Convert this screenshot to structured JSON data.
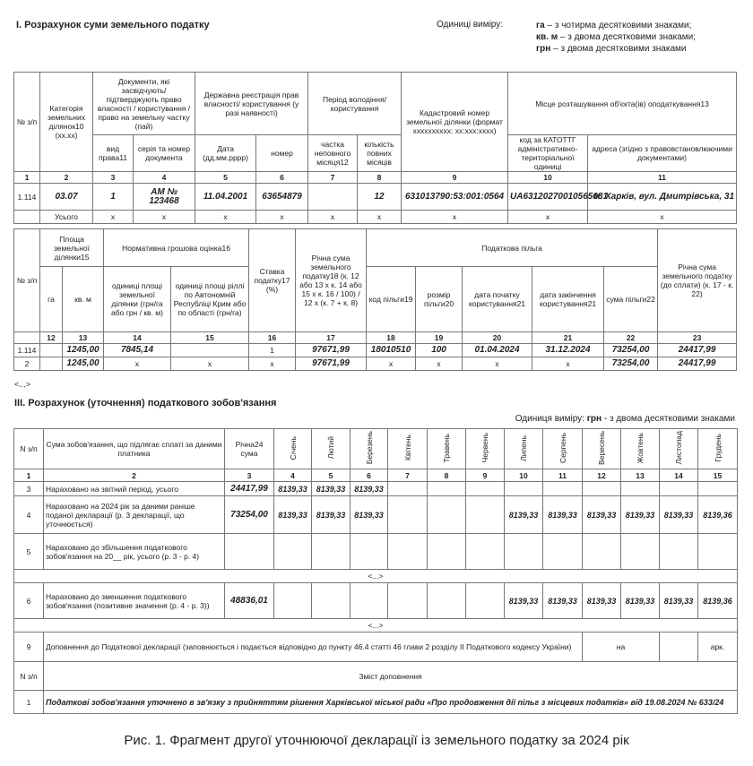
{
  "section1": {
    "title": "I. Розрахунок суми земельного податку",
    "units_label": "Одиниці виміру:",
    "units": [
      {
        "unit": "га",
        "text": "–  з чотирма десятковими знаками;"
      },
      {
        "unit": "кв. м",
        "text": "– з двома десятковими знаками;"
      },
      {
        "unit": "грн",
        "text": "–  з двома десятковими знаками"
      }
    ]
  },
  "t1": {
    "h": {
      "no": "№ з/п",
      "cat": "Категорія земельних ділянок10 (xx.xx)",
      "docs": "Документи, які засвідчують/ підтверджують право власності / користування / право на земельну частку (пай)",
      "reg": "Державна реєстрація прав власності/ користування (у разі наявності)",
      "period": "Період володіння/ користування",
      "cad": "Кадастровий номер земельної ділянки (формат xxxxxxxxxx: xx:xxx:xxxx)",
      "place": "Місце розташування об'єкта(ів) оподаткування13"
    },
    "sub": [
      "вид права11",
      "серія та номер документа",
      "Дата (дд.мм.рррр)",
      "номер",
      "частка неповного місяця12",
      "кількість повних місяців",
      "код за КАТОТТГ адміністративно-територіальної одиниці",
      "адреса (згідно з правовстановлюючими документами)"
    ],
    "nums": [
      "1",
      "2",
      "3",
      "4",
      "5",
      "6",
      "7",
      "8",
      "9",
      "10",
      "11"
    ],
    "row": [
      "1.114",
      "03.07",
      "1",
      "АМ № 123468",
      "11.04.2001",
      "63654879",
      "",
      "12",
      "631013790:53:001:0564",
      "UA63120270010565081",
      "м. Харків, вул. Дмитрівська, 31"
    ],
    "total": [
      "",
      "Усього",
      "x",
      "x",
      "x",
      "x",
      "x",
      "x",
      "x",
      "x",
      "x"
    ]
  },
  "t2": {
    "h": {
      "no": "№ з/п",
      "area": "Площа земельної ділянки15",
      "ngo": "Нормативна грошова оцінка16",
      "rate": "Ставка податку17 (%)",
      "annual": "Річна сума земельного податку18 (к. 12 або 13 х к. 14 або 15 х к. 16 / 100) / 12 х (к. 7 + к. 8)",
      "relief": "Податкова пільга",
      "topay": "Річна сума земельного податку (до сплати) (к. 17 - к. 22)"
    },
    "sub": [
      "га",
      "кв. м",
      "одиниці площі земельної ділянки (грн/га або грн / кв. м)",
      "одиниці площі ріллі по Автономній Республіці Крим або по області (грн/га)",
      "код пільги19",
      "розмір пільги20",
      "дата початку користування21",
      "дата закінчення користування21",
      "сума пільги22"
    ],
    "nums": [
      "",
      "12",
      "13",
      "14",
      "15",
      "16",
      "17",
      "18",
      "19",
      "20",
      "21",
      "22",
      "23"
    ],
    "rows": [
      [
        "1.114",
        "",
        "1245,00",
        "7845,14",
        "",
        "1",
        "97671,99",
        "18010510",
        "100",
        "01.04.2024",
        "31.12.2024",
        "73254,00",
        "24417,99"
      ],
      [
        "2",
        "",
        "1245,00",
        "x",
        "x",
        "x",
        "97671,99",
        "x",
        "x",
        "x",
        "x",
        "73254,00",
        "24417,99"
      ]
    ]
  },
  "ellipsis": "<...>",
  "section3": {
    "title": "III. Розрахунок (уточнення) податкового зобов'язання",
    "units_prefix": "Одиниця виміру:",
    "units_bold": "грн",
    "units_suffix": " - з двома десятковими знаками"
  },
  "t3": {
    "h": [
      "N з/п",
      "Сума зобов'язання, що підлягає сплаті за даними платника",
      "Річна24 сума",
      "Січень",
      "Лютий",
      "Березень",
      "Квітень",
      "Травень",
      "Червень",
      "Липень",
      "Серпень",
      "Вересень",
      "Жовтень",
      "Листопад",
      "Грудень"
    ],
    "nums": [
      "1",
      "2",
      "3",
      "4",
      "5",
      "6",
      "7",
      "8",
      "9",
      "10",
      "11",
      "12",
      "13",
      "14",
      "15"
    ],
    "rows": [
      [
        "3",
        "Нараховано на звітний період, усього",
        "24417,99",
        "8139,33",
        "8139,33",
        "8139,33",
        "",
        "",
        "",
        "",
        "",
        "",
        "",
        "",
        ""
      ],
      [
        "4",
        "Нараховано на 2024 рік за даними раніше поданої декларації (р. 3 декларації, що уточнюється)",
        "73254,00",
        "8139,33",
        "8139,33",
        "8139,33",
        "",
        "",
        "",
        "8139,33",
        "8139,33",
        "8139,33",
        "8139,33",
        "8139,33",
        "8139,36"
      ],
      [
        "5",
        "Нараховано до збільшення податкового зобов'язання на 20__ рік, усього (р. 3 - р. 4)",
        "",
        "",
        "",
        "",
        "",
        "",
        "",
        "",
        "",
        "",
        "",
        "",
        ""
      ],
      [
        "6",
        "Нараховано до зменшення податкового зобов'язання (позитивне значення (р. 4 - р. 3))",
        "48836,01",
        "",
        "",
        "",
        "",
        "",
        "",
        "8139,33",
        "8139,33",
        "8139,33",
        "8139,33",
        "8139,33",
        "8139,36"
      ]
    ],
    "r9": {
      "no": "9",
      "text": "Доповнення до Податкової декларації (заповнюється і подається відповідно до пункту 46.4 статті 46 глави 2 розділу II Податкового кодексу України)",
      "on": "на",
      "sheets": "арк."
    },
    "sup_head": {
      "no": "N з/п",
      "text": "Зміст доповнення"
    },
    "sup_row": {
      "no": "1",
      "text": "Податкові зобов'язання уточнено в зв'язку з прийняттям рішення Харківської міської ради «Про продовження дії пільг з місцевих податків» від 19.08.2024 № 633/24"
    }
  },
  "caption": "Рис. 1. Фрагмент другої уточнюючої декларації із земельного податку за 2024 рік"
}
